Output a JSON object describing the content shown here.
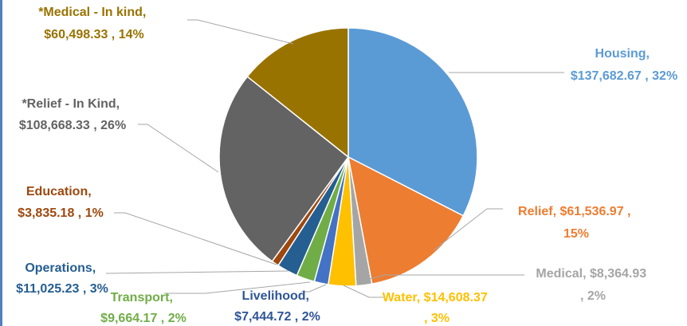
{
  "chart_data": {
    "type": "pie",
    "title": "",
    "slices": [
      {
        "name": "Housing",
        "value": 137682.67,
        "value_label": "$137,682.67",
        "percent": "32%",
        "color": "#5b9bd5"
      },
      {
        "name": "Relief",
        "value": 61536.97,
        "value_label": "$61,536.97",
        "percent": "15%",
        "color": "#ed7d31"
      },
      {
        "name": "Medical",
        "value": 8364.93,
        "value_label": "$8,364.93",
        "percent": "2%",
        "color": "#a5a5a5"
      },
      {
        "name": "Water",
        "value": 14608.37,
        "value_label": "$14,608.37",
        "percent": "3%",
        "color": "#ffc000"
      },
      {
        "name": "Livelihood",
        "value": 7444.72,
        "value_label": "$7,444.72",
        "percent": "2%",
        "color": "#4472c4"
      },
      {
        "name": "Transport",
        "value": 9664.17,
        "value_label": "$9,664.17",
        "percent": "2%",
        "color": "#70ad47"
      },
      {
        "name": "Operations",
        "value": 11025.23,
        "value_label": "$11,025.23",
        "percent": "3%",
        "color": "#255e91"
      },
      {
        "name": "Education",
        "value": 3835.18,
        "value_label": "$3,835.18",
        "percent": "1%",
        "color": "#9e480e"
      },
      {
        "name": "*Relief - In Kind",
        "value": 108668.33,
        "value_label": "$108,668.33",
        "percent": "26%",
        "color": "#636363"
      },
      {
        "name": "*Medical - In kind",
        "value": 60498.33,
        "value_label": "$60,498.33",
        "percent": "14%",
        "color": "#997300"
      }
    ]
  },
  "labels": {
    "housing": {
      "line1": "Housing,",
      "line2": "$137,682.67 , 32%"
    },
    "relief": {
      "line1": "Relief, $61,536.97 ,",
      "line2": "15%"
    },
    "medical": {
      "line1": "Medical, $8,364.93",
      "line2": ", 2%"
    },
    "water": {
      "line1": "Water, $14,608.37",
      "line2": ", 3%"
    },
    "livelihood": {
      "line1": "Livelihood,",
      "line2": "$7,444.72 , 2%"
    },
    "transport": {
      "line1": "Transport,",
      "line2": "$9,664.17 , 2%"
    },
    "operations": {
      "line1": "Operations,",
      "line2": "$11,025.23 , 3%"
    },
    "education": {
      "line1": "Education,",
      "line2": "$3,835.18 , 1%"
    },
    "relief_in_kind": {
      "line1": "*Relief - In Kind,",
      "line2": "$108,668.33 , 26%"
    },
    "medical_in_kind": {
      "line1": "*Medical - In kind,",
      "line2": "$60,498.33 , 14%"
    }
  }
}
